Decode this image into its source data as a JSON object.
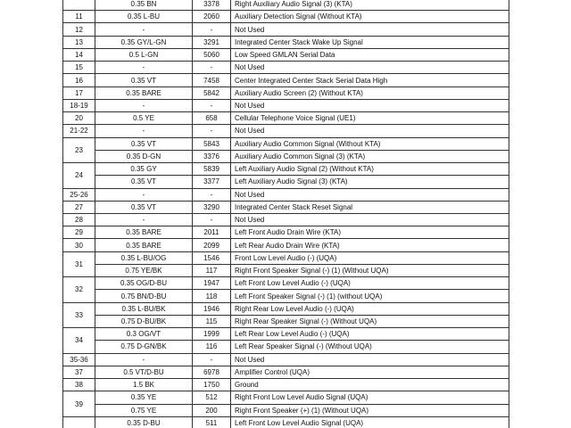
{
  "table": {
    "rows": [
      {
        "lines": [
          [
            "0.35 BN",
            "3378",
            "Right Auxiliary Audio Signal (3) (KTA)"
          ]
        ]
      },
      {
        "pin": "11",
        "lines": [
          [
            "0.35 L-BU",
            "2060",
            "Auxiliary Detection Signal (Without KTA)"
          ]
        ]
      },
      {
        "pin": "12",
        "lines": [
          [
            "-",
            "-",
            "Not Used"
          ]
        ]
      },
      {
        "pin": "13",
        "lines": [
          [
            "0.35 GY/L-GN",
            "3291",
            "Integrated Center Stack Wake Up Signal"
          ]
        ]
      },
      {
        "pin": "14",
        "lines": [
          [
            "0.5 L-GN",
            "5060",
            "Low Speed GMLAN Serial Data"
          ]
        ]
      },
      {
        "pin": "15",
        "lines": [
          [
            "-",
            "-",
            "Not Used"
          ]
        ]
      },
      {
        "pin": "16",
        "lines": [
          [
            "0.35 VT",
            "7458",
            "Center Integrated Center Stack Serial Data High"
          ]
        ]
      },
      {
        "pin": "17",
        "lines": [
          [
            "0.35 BARE",
            "5842",
            "Auxiliary Audio Screen (2) (Without KTA)"
          ]
        ]
      },
      {
        "pin": "18-19",
        "lines": [
          [
            "-",
            "-",
            "Not Used"
          ]
        ]
      },
      {
        "pin": "20",
        "lines": [
          [
            "0.5 YE",
            "658",
            "Cellular Telephone Voice Signal (UE1)"
          ]
        ]
      },
      {
        "pin": "21-22",
        "lines": [
          [
            "-",
            "-",
            "Not Used"
          ]
        ]
      },
      {
        "pin": "23",
        "lines": [
          [
            "0.35 VT",
            "5843",
            "Auxiliary Audio Common Signal (Without KTA)"
          ],
          [
            "0.35 D-GN",
            "3376",
            "Auxiliary Audio Common Signal (3) (KTA)"
          ]
        ]
      },
      {
        "pin": "24",
        "lines": [
          [
            "0.35 GY",
            "5839",
            "Left Auxiliary Audio Signal (2) (Without KTA)"
          ],
          [
            "0.35 VT",
            "3377",
            "Left Auxiliary Audio Signal (3) (KTA)"
          ]
        ]
      },
      {
        "pin": "25-26",
        "lines": [
          [
            "-",
            "-",
            "Not Used"
          ]
        ]
      },
      {
        "pin": "27",
        "lines": [
          [
            "0.35 VT",
            "3290",
            "Integrated Center Stack Reset Signal"
          ]
        ]
      },
      {
        "pin": "28",
        "lines": [
          [
            "-",
            "-",
            "Not Used"
          ]
        ]
      },
      {
        "pin": "29",
        "lines": [
          [
            "0.35 BARE",
            "2011",
            "Left Front Audio Drain Wire (KTA)"
          ]
        ]
      },
      {
        "pin": "30",
        "lines": [
          [
            "0.35 BARE",
            "2099",
            "Left Rear Audio Drain Wire (KTA)"
          ]
        ]
      },
      {
        "pin": "31",
        "lines": [
          [
            "0.35 L-BU/OG",
            "1546",
            "Front Low Level Audio (-) (UQA)"
          ],
          [
            "0.75 YE/BK",
            "117",
            "Right Front Speaker Signal (-) (1) (Without UQA)"
          ]
        ]
      },
      {
        "pin": "32",
        "lines": [
          [
            "0.35 OG/D-BU",
            "1947",
            "Left Front Low Level Audio (-) (UQA)"
          ],
          [
            "0.75 BN/D-BU",
            "118",
            "Left Front Speaker Signal (-) (1) (without UQA)"
          ]
        ]
      },
      {
        "pin": "33",
        "lines": [
          [
            "0.35 L-BU/BK",
            "1946",
            "Right Rear Low Level Audio (-) (UQA)"
          ],
          [
            "0.75 D-BU/BK",
            "115",
            "Right Rear Speaker Signal (-) (Without UQA)"
          ]
        ]
      },
      {
        "pin": "34",
        "lines": [
          [
            "0.3 OG/VT",
            "1999",
            "Left Rear Low Level Audio (-) (UQA)"
          ],
          [
            "0.75 D-GN/BK",
            "116",
            "Left Rear Speaker Signal (-) (Without UQA)"
          ]
        ]
      },
      {
        "pin": "35-36",
        "lines": [
          [
            "-",
            "-",
            "Not Used"
          ]
        ]
      },
      {
        "pin": "37",
        "lines": [
          [
            "0.5 VT/D-BU",
            "6978",
            "Amplifier Control (UQA)"
          ]
        ]
      },
      {
        "pin": "38",
        "lines": [
          [
            "1.5 BK",
            "1750",
            "Ground"
          ]
        ]
      },
      {
        "pin": "39",
        "lines": [
          [
            "0.35 YE",
            "512",
            "Right Front Low Level Audio Signal (UQA)"
          ],
          [
            "0.75 YE",
            "200",
            "Right Front Speaker (+) (1) (Without UQA)"
          ]
        ]
      },
      {
        "lines": [
          [
            "0.35 D-BU",
            "511",
            "Left Front Low Level Audio Signal (UQA)"
          ]
        ]
      }
    ]
  }
}
